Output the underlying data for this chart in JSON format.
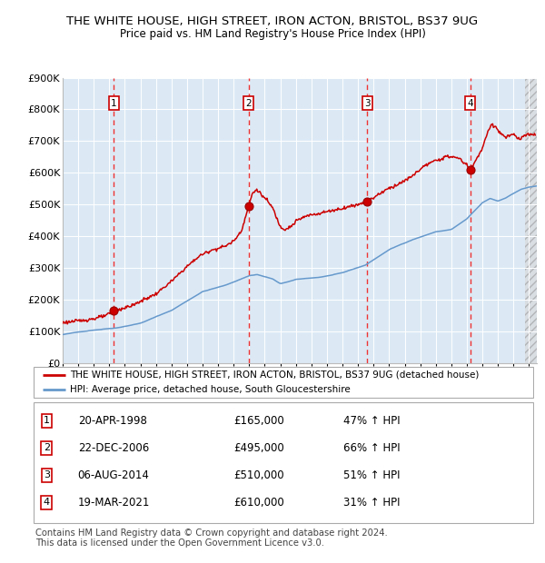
{
  "title1": "THE WHITE HOUSE, HIGH STREET, IRON ACTON, BRISTOL, BS37 9UG",
  "title2": "Price paid vs. HM Land Registry's House Price Index (HPI)",
  "legend_red": "THE WHITE HOUSE, HIGH STREET, IRON ACTON, BRISTOL, BS37 9UG (detached house)",
  "legend_blue": "HPI: Average price, detached house, South Gloucestershire",
  "footer": "Contains HM Land Registry data © Crown copyright and database right 2024.\nThis data is licensed under the Open Government Licence v3.0.",
  "transactions": [
    {
      "num": 1,
      "date": "20-APR-1998",
      "price": 165000,
      "hpi_pct": "47% ↑ HPI"
    },
    {
      "num": 2,
      "date": "22-DEC-2006",
      "price": 495000,
      "hpi_pct": "66% ↑ HPI"
    },
    {
      "num": 3,
      "date": "06-AUG-2014",
      "price": 510000,
      "hpi_pct": "51% ↑ HPI"
    },
    {
      "num": 4,
      "date": "19-MAR-2021",
      "price": 610000,
      "hpi_pct": "31% ↑ HPI"
    }
  ],
  "transaction_dates_decimal": [
    1998.3,
    2006.97,
    2014.59,
    2021.21
  ],
  "transaction_prices": [
    165000,
    495000,
    510000,
    610000
  ],
  "ylim": [
    0,
    900000
  ],
  "xlim_start": 1995.0,
  "xlim_end": 2025.5,
  "plot_bg_color": "#dce9f5",
  "red_line_color": "#cc0000",
  "blue_line_color": "#6699cc",
  "dashed_line_color": "#ee3333",
  "title_fontsize": 9.5,
  "subtitle_fontsize": 8.5
}
